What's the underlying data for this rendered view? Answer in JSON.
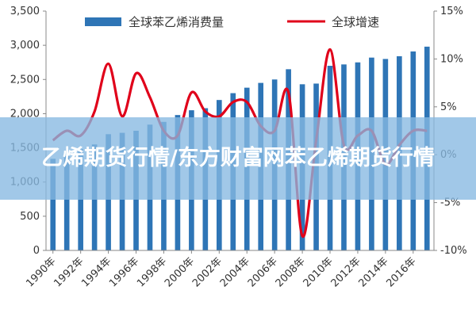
{
  "colors": {
    "bar": "#2e75b6",
    "line": "#e0001a",
    "overlay": "#87b9e1"
  },
  "overlay": {
    "title": "乙烯期货行情/东方财富网苯乙烯期货行情"
  },
  "chart_data": {
    "type": "bar",
    "x": [
      1990,
      1991,
      1992,
      1993,
      1994,
      1995,
      1996,
      1997,
      1998,
      1999,
      2000,
      2001,
      2002,
      2003,
      2004,
      2005,
      2006,
      2007,
      2008,
      2009,
      2010,
      2011,
      2012,
      2013,
      2014,
      2015,
      2016,
      2017
    ],
    "x_tick_labels": [
      "1990年",
      "1992年",
      "1994年",
      "1996年",
      "1998年",
      "2000年",
      "2002年",
      "2004年",
      "2006年",
      "2008年",
      "2010年",
      "2012年",
      "2014年",
      "2016年"
    ],
    "series": [
      {
        "name": "全球苯乙烯消费量",
        "type": "bar",
        "axis": "left",
        "values": [
          1340,
          1380,
          1480,
          1550,
          1700,
          1720,
          1750,
          1840,
          1880,
          1980,
          2050,
          2080,
          2200,
          2300,
          2380,
          2450,
          2500,
          2650,
          2430,
          2440,
          2700,
          2720,
          2750,
          2820,
          2800,
          2840,
          2910,
          2980
        ]
      },
      {
        "name": "全球增速",
        "type": "line",
        "axis": "right",
        "values": [
          1.5,
          2.5,
          2.0,
          4.5,
          9.5,
          4.0,
          8.5,
          6.0,
          2.5,
          2.0,
          6.5,
          4.5,
          4.0,
          5.5,
          5.5,
          3.0,
          2.5,
          6.5,
          -8.5,
          1.5,
          11.0,
          1.0,
          2.0,
          2.5,
          -1.0,
          1.0,
          2.5,
          2.5
        ]
      }
    ],
    "y_left": {
      "ylim": [
        0,
        3500
      ],
      "ticks": [
        "0",
        "500",
        "1,000",
        "1,500",
        "2,000",
        "2,500",
        "3,000",
        "3,500"
      ]
    },
    "y_right": {
      "ylim": [
        -10,
        15
      ],
      "ticks": [
        "-10%",
        "-5%",
        "0%",
        "5%",
        "10%",
        "15%"
      ]
    },
    "legend": "top-center",
    "grid": false
  }
}
